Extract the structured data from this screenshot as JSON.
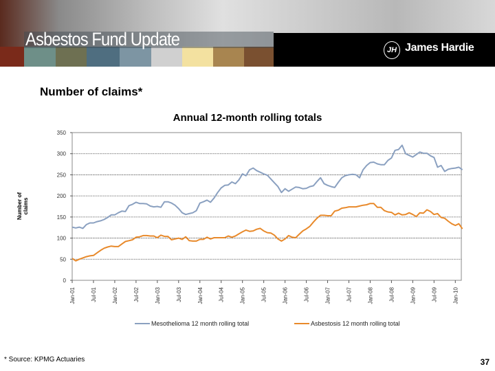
{
  "header": {
    "title": "Asbestos Fund Update",
    "logo_text": "James Hardie",
    "logo_mark": "JH"
  },
  "subtitle": "Number of claims*",
  "footnote": "* Source: KPMG Actuaries",
  "page_number": "37",
  "chart_data": {
    "type": "line",
    "title": "Annual 12-month rolling totals",
    "xlabel": "",
    "ylabel": "Number of claims",
    "ylim": [
      0,
      350
    ],
    "yticks": [
      "0",
      "50",
      "100",
      "150",
      "200",
      "250",
      "300",
      "350"
    ],
    "x_start": "Jan-01",
    "x_end": "Mar-10",
    "xtick_labels": [
      "Jan-01",
      "Jul-01",
      "Jan-02",
      "Jul-02",
      "Jan-03",
      "Jul-03",
      "Jan-04",
      "Jul-04",
      "Jan-05",
      "Jul-05",
      "Jan-06",
      "Jul-06",
      "Jan-07",
      "Jul-07",
      "Jan-08",
      "Jul-08",
      "Jan-09",
      "Jul-09",
      "Jan-10"
    ],
    "grid": "horizontal dotted",
    "legend_position": "bottom",
    "series": [
      {
        "name": "Mesothelioma 12 month rolling total",
        "color": "#8aa0c0",
        "values": [
          126,
          124,
          126,
          123,
          132,
          136,
          136,
          139,
          141,
          144,
          149,
          155,
          155,
          160,
          164,
          163,
          177,
          180,
          185,
          182,
          182,
          181,
          176,
          174,
          175,
          173,
          186,
          186,
          183,
          178,
          170,
          160,
          156,
          158,
          160,
          165,
          183,
          186,
          190,
          185,
          195,
          208,
          219,
          225,
          226,
          233,
          229,
          238,
          252,
          248,
          262,
          266,
          260,
          256,
          252,
          249,
          240,
          231,
          222,
          208,
          217,
          211,
          216,
          221,
          220,
          217,
          218,
          222,
          224,
          234,
          243,
          229,
          225,
          222,
          220,
          232,
          243,
          248,
          250,
          251,
          250,
          243,
          262,
          272,
          279,
          280,
          276,
          274,
          274,
          284,
          290,
          308,
          310,
          320,
          300,
          296,
          292,
          298,
          304,
          301,
          301,
          295,
          291,
          268,
          272,
          258,
          263,
          265,
          266,
          268,
          262
        ]
      },
      {
        "name": "Asbestosis 12 month rolling total",
        "color": "#e8892a",
        "values": [
          52,
          46,
          50,
          53,
          56,
          58,
          59,
          65,
          71,
          76,
          79,
          81,
          80,
          80,
          86,
          92,
          94,
          96,
          102,
          103,
          106,
          106,
          105,
          105,
          101,
          107,
          104,
          104,
          96,
          98,
          100,
          97,
          103,
          94,
          93,
          93,
          97,
          97,
          102,
          98,
          101,
          101,
          101,
          101,
          105,
          102,
          105,
          110,
          115,
          119,
          116,
          117,
          121,
          123,
          117,
          113,
          112,
          107,
          98,
          93,
          98,
          106,
          102,
          101,
          109,
          117,
          122,
          128,
          138,
          147,
          154,
          154,
          153,
          153,
          164,
          166,
          171,
          172,
          174,
          174,
          174,
          176,
          178,
          179,
          182,
          182,
          173,
          173,
          165,
          162,
          161,
          155,
          159,
          155,
          156,
          160,
          156,
          151,
          160,
          159,
          167,
          163,
          156,
          158,
          149,
          147,
          140,
          134,
          130,
          134,
          122
        ]
      }
    ]
  }
}
